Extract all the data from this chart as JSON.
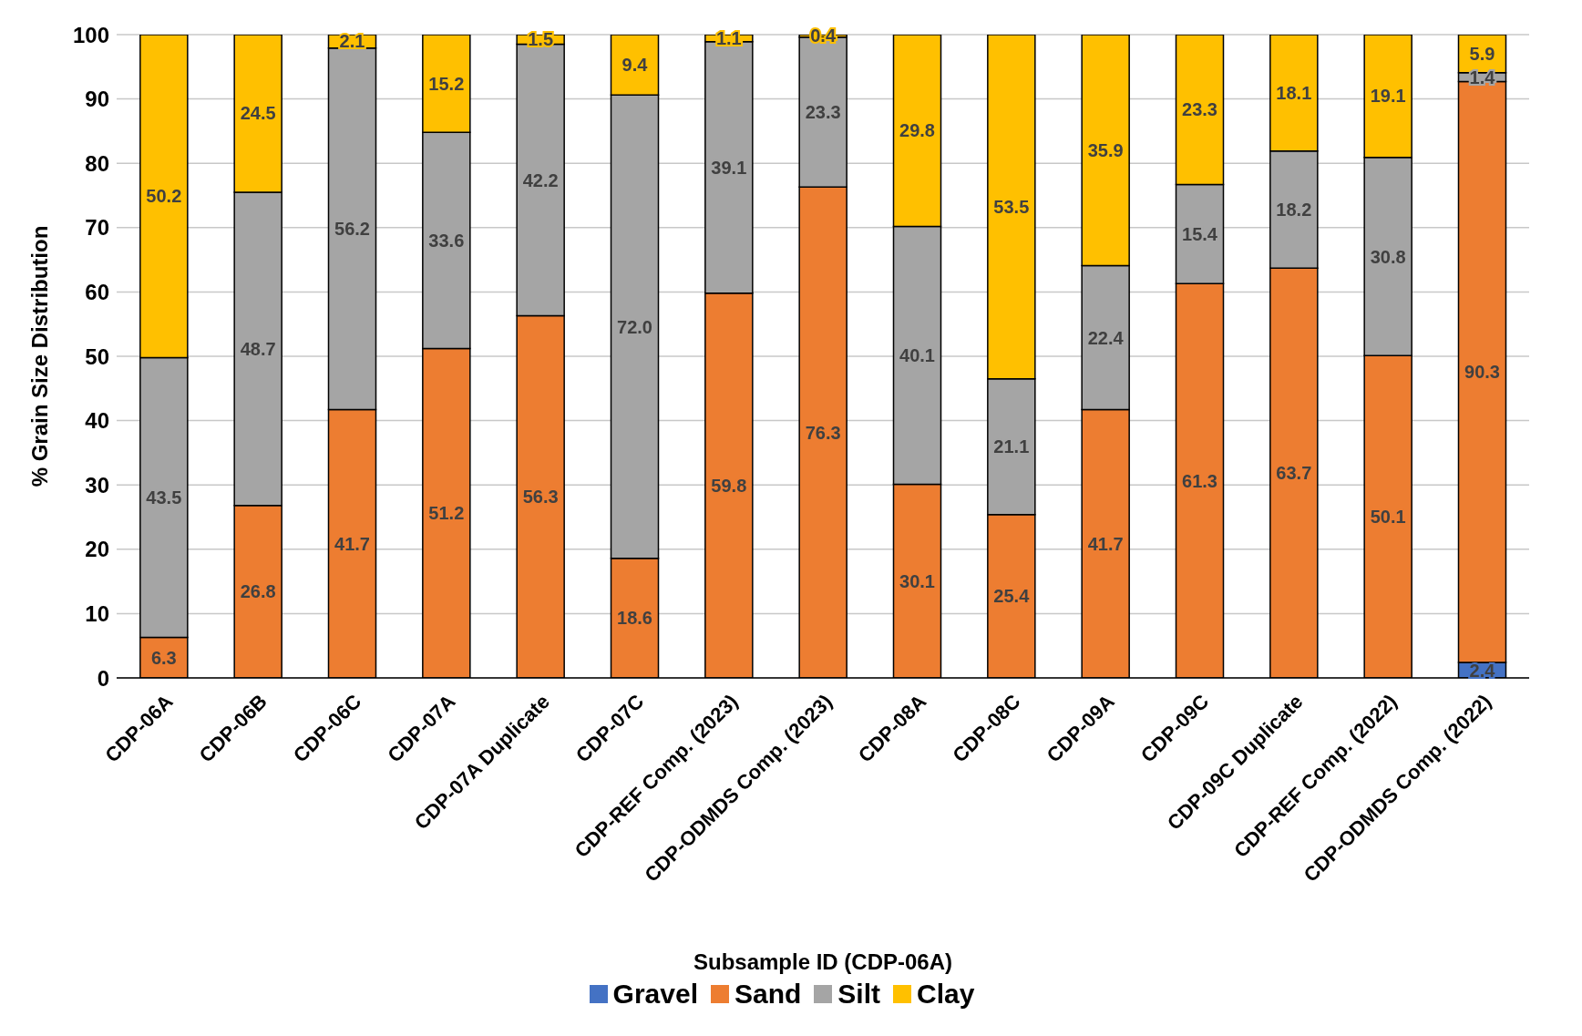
{
  "chart_data": {
    "type": "bar",
    "stacked": true,
    "xlabel": "Subsample ID (CDP-06A)",
    "ylabel": "% Grain Size Distribution",
    "categories": [
      "CDP-06A",
      "CDP-06B",
      "CDP-06C",
      "CDP-07A",
      "CDP-07A Duplicate",
      "CDP-07C",
      "CDP-REF Comp. (2023)",
      "CDP-ODMDS Comp. (2023)",
      "CDP-08A",
      "CDP-08C",
      "CDP-09A",
      "CDP-09C",
      "CDP-09C Duplicate",
      "CDP-REF Comp. (2022)",
      "CDP-ODMDS Comp. (2022)"
    ],
    "series": [
      {
        "name": "Gravel",
        "color": "#4472c4",
        "values": [
          null,
          null,
          null,
          null,
          null,
          null,
          null,
          null,
          null,
          null,
          null,
          null,
          null,
          null,
          2.4
        ],
        "value_labels": [
          null,
          null,
          null,
          null,
          null,
          null,
          null,
          null,
          null,
          null,
          null,
          null,
          null,
          null,
          "2.4"
        ]
      },
      {
        "name": "Sand",
        "color": "#ed7d31",
        "values": [
          6.3,
          26.8,
          41.7,
          51.2,
          56.3,
          18.6,
          59.8,
          76.3,
          30.1,
          25.4,
          41.7,
          61.3,
          63.7,
          50.1,
          90.3
        ],
        "value_labels": [
          "6.3",
          "26.8",
          "41.7",
          "51.2",
          "56.3",
          "18.6",
          "59.8",
          "76.3",
          "30.1",
          "25.4",
          "41.7",
          "61.3",
          "63.7",
          "50.1",
          "90.3"
        ]
      },
      {
        "name": "Silt",
        "color": "#a5a5a5",
        "values": [
          43.5,
          48.7,
          56.2,
          33.6,
          42.2,
          72.0,
          39.1,
          23.3,
          40.1,
          21.1,
          22.4,
          15.4,
          18.2,
          30.8,
          1.4
        ],
        "value_labels": [
          "43.5",
          "48.7",
          "56.2",
          "33.6",
          "42.2",
          "72.0",
          "39.1",
          "23.3",
          "40.1",
          "21.1",
          "22.4",
          "15.4",
          "18.2",
          "30.8",
          "1.4"
        ]
      },
      {
        "name": "Clay",
        "color": "#ffc000",
        "values": [
          50.2,
          24.5,
          2.1,
          15.2,
          1.5,
          9.4,
          1.1,
          0.4,
          29.8,
          53.5,
          35.9,
          23.3,
          18.1,
          19.1,
          5.9
        ],
        "value_labels": [
          "50.2",
          "24.5",
          "2.1",
          "15.2",
          "1.5",
          "9.4",
          "1.1",
          "0.4",
          "29.8",
          "53.5",
          "35.9",
          "23.3",
          "18.1",
          "19.1",
          "5.9"
        ]
      }
    ],
    "ylim": [
      0,
      100
    ],
    "yticks": [
      0,
      10,
      20,
      30,
      40,
      50,
      60,
      70,
      80,
      90,
      100
    ],
    "grid": "y",
    "legend": "bottom"
  }
}
